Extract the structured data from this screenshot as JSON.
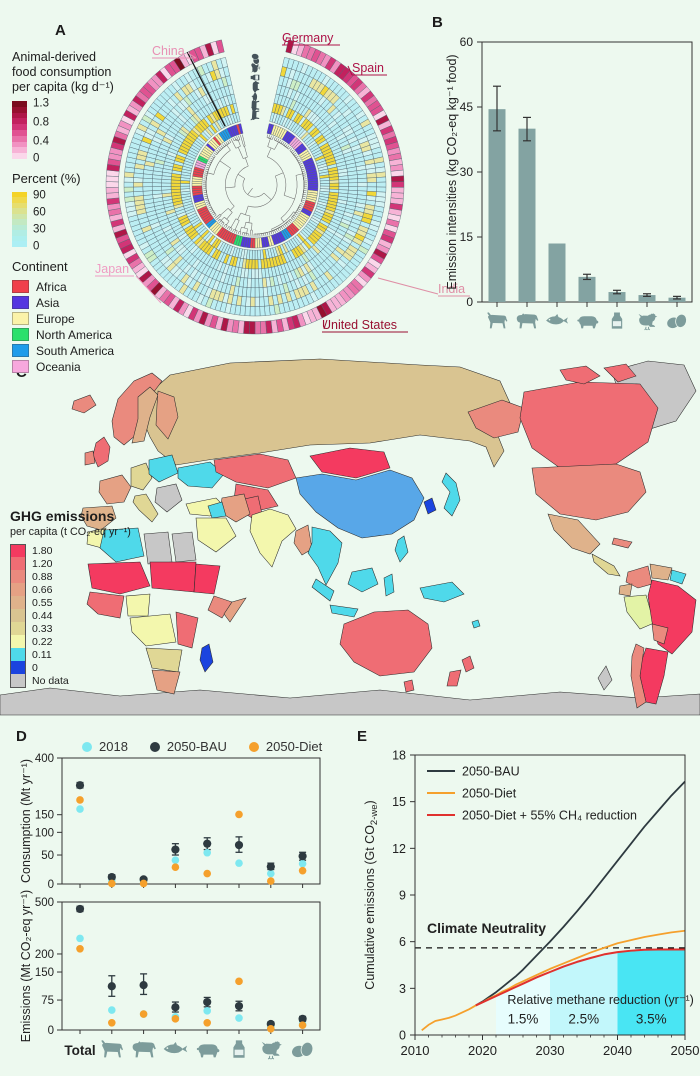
{
  "panels": {
    "a": "A",
    "b": "B",
    "c": "C",
    "d": "D",
    "e": "E"
  },
  "colors": {
    "background": "#edf9ef",
    "text": "#2b2b2b",
    "axis": "#333333",
    "series_2018": "#7ee8f0",
    "series_bau": "#2e3a40",
    "series_diet": "#f5a02c",
    "series_diet_ch4": "#e0312e"
  },
  "chart_data": [
    {
      "id": "A",
      "type": "circular-heatmap",
      "consumption_legend": {
        "title_lines": [
          "Animal-derived",
          "food consumption",
          "per capita (kg d⁻¹)"
        ],
        "tick_labels": [
          "1.3",
          "0.8",
          "0.4",
          "0"
        ],
        "colors": [
          "#7a0c1e",
          "#96102f",
          "#ae1647",
          "#c2215e",
          "#d23577",
          "#e05291",
          "#e972a9",
          "#f192c2",
          "#f7b3d6",
          "#fbd7ea"
        ]
      },
      "percent_legend": {
        "title": "Percent (%)",
        "tick_labels": [
          "90",
          "60",
          "30",
          "0"
        ],
        "colors": [
          "#f4d327",
          "#efd94c",
          "#e6de6e",
          "#dbe28f",
          "#cfe6aa",
          "#c3e9c2",
          "#b9ebd5",
          "#b1ede4",
          "#adefee",
          "#aceff4"
        ]
      },
      "continent_legend": {
        "title": "Continent",
        "items": [
          {
            "label": "Africa",
            "color": "#f0404b"
          },
          {
            "label": "Asia",
            "color": "#5436e0"
          },
          {
            "label": "Europe",
            "color": "#fbf3a9"
          },
          {
            "label": "North America",
            "color": "#2ce06c"
          },
          {
            "label": "South America",
            "color": "#1f9cea"
          },
          {
            "label": "Oceania",
            "color": "#f7a8dd"
          }
        ]
      },
      "country_labels": [
        {
          "name": "China",
          "color": "#e890b4"
        },
        {
          "name": "Germany",
          "color": "#ad1247"
        },
        {
          "name": "Spain",
          "color": "#ad1247"
        },
        {
          "name": "India",
          "color": "#df8fa6"
        },
        {
          "name": "United States",
          "color": "#991031"
        },
        {
          "name": "Japan",
          "color": "#ef9cc3"
        }
      ],
      "ring_foods_inner_to_outer": [
        "goat",
        "cattle",
        "fish",
        "pig",
        "milk",
        "chicken",
        "eggs"
      ],
      "palette": {
        "cell_cyan": "#bceef3",
        "cell_cyan_light": "#d2f3f3",
        "cell_yellow": "#f1d83a",
        "cell_pale_yellow": "#e9e6a2",
        "cell_pale_green": "#cdeec6"
      },
      "n_countries": 150
    },
    {
      "id": "B",
      "type": "bar",
      "ylabel": "Emission intensities (kg CO₂-eq kg⁻¹ food)",
      "yticks": [
        0,
        15,
        30,
        45,
        60
      ],
      "ylim": [
        0,
        60
      ],
      "bar_color": "#83a3a2",
      "icon_color": "#7d9c9b",
      "categories": [
        "goat",
        "cattle",
        "fish",
        "pig",
        "milk",
        "chicken",
        "eggs"
      ],
      "values": [
        44.5,
        40,
        13.5,
        5.8,
        2.3,
        1.6,
        1.0
      ],
      "err_low": [
        39.5,
        37.2,
        null,
        5.2,
        1.9,
        1.3,
        0.7
      ],
      "err_high": [
        49.8,
        42.6,
        null,
        6.4,
        2.7,
        1.9,
        1.3
      ]
    },
    {
      "id": "C",
      "type": "choropleth-map",
      "legend": {
        "title": "GHG emissions",
        "subtitle": "per capita (t CO₂-eq yr⁻¹)",
        "bins": [
          {
            "label": "1.80",
            "color": "#f43a60"
          },
          {
            "label": "1.20",
            "color": "#ef6d74"
          },
          {
            "label": "0.88",
            "color": "#ea8a7e"
          },
          {
            "label": "0.66",
            "color": "#e5a184"
          },
          {
            "label": "0.55",
            "color": "#dfb28b"
          },
          {
            "label": "0.44",
            "color": "#d9c491"
          },
          {
            "label": "0.33",
            "color": "#e0d795"
          },
          {
            "label": "0.22",
            "color": "#f3f7ad"
          },
          {
            "label": "0.11",
            "color": "#4fd9ea"
          },
          {
            "label": "0",
            "color": "#1b44df"
          },
          {
            "label": "No data",
            "color": "#c7c7c7"
          }
        ]
      },
      "regions": {
        "russia": "#d9c491",
        "norway": "#ea8a7e",
        "sweden": "#dfb28b",
        "finland": "#e5a184",
        "iceland": "#ea8a7e",
        "greenland": "#c7c7c7",
        "uk": "#ef6d74",
        "ireland": "#ea8a7e",
        "france": "#e5a184",
        "iberia": "#dfb28b",
        "germany": "#e0d795",
        "poland": "#4fd9ea",
        "ukraine": "#4fd9ea",
        "balkans": "#c7c7c7",
        "italy": "#e0d795",
        "turkey": "#f3f7ad",
        "kazakhstan": "#ef6d74",
        "centralasia": "#ef6d74",
        "mongolia": "#f43a60",
        "china": "#58a7e8",
        "korea": "#1b44df",
        "japan": "#4fd9ea",
        "pakistan": "#ef6d74",
        "india": "#f3f7ad",
        "iran": "#e5a184",
        "iraq": "#4fd9ea",
        "saudi": "#f3f7ad",
        "myanmar": "#e5a184",
        "seasia": "#4fd9ea",
        "philippines": "#4fd9ea",
        "borneo": "#4fd9ea",
        "sumatra": "#4fd9ea",
        "java": "#4fd9ea",
        "sulawesi": "#4fd9ea",
        "newguinea": "#4fd9ea",
        "morocco": "#f3f7ad",
        "algeria": "#4fd9ea",
        "libya": "#c7c7c7",
        "egypt": "#c7c7c7",
        "mali": "#f43a60",
        "chad": "#f43a60",
        "sudan": "#f43a60",
        "westafrica": "#ef6d74",
        "nigeria": "#f3f7ad",
        "ethiopia": "#ea8a7e",
        "somalia": "#e5a184",
        "centralafrica": "#f3f7ad",
        "eastafrica": "#ef6d74",
        "angola": "#e0d795",
        "southafrica": "#e5a184",
        "madagascar": "#1b44df",
        "australia": "#ef6d74",
        "tasmania": "#ef6d74",
        "nz1": "#ef6d74",
        "nz2": "#ef6d74",
        "fiji": "#4fd9ea",
        "alaska": "#ea8a7e",
        "canada": "#ef6d74",
        "arctic1": "#ef6d74",
        "arctic2": "#ef6d74",
        "usa": "#ea8a7e",
        "mexico": "#dfb28b",
        "centralamerica": "#e0d795",
        "cuba": "#ea8a7e",
        "colombia": "#ea8a7e",
        "venezuela": "#dfb28b",
        "guyanas": "#4fd9ea",
        "ecuador": "#dfb28b",
        "peru": "#e3f3a6",
        "brazil": "#f43a60",
        "bolivia": "#ea8a7e",
        "argentina": "#f43a60",
        "chile": "#ea8a7e",
        "antarctica": "#c7c7c7",
        "antarctic_peninsula": "#c7c7c7"
      }
    },
    {
      "id": "D",
      "type": "scatter",
      "legend": [
        {
          "label": "2018",
          "color": "#7ee8f0"
        },
        {
          "label": "2050-BAU",
          "color": "#2e3a40"
        },
        {
          "label": "2050-Diet",
          "color": "#f5a02c"
        }
      ],
      "categories": [
        "Total",
        "goat",
        "cattle",
        "fish",
        "pig",
        "milk",
        "chicken",
        "eggs"
      ],
      "total_label": "Total",
      "icon_color": "#7d9c9b",
      "subplots": [
        {
          "ylabel": "Consumption (Mt yr⁻¹)",
          "yticks": [
            0,
            50,
            100,
            150,
            400
          ],
          "series_2018": [
            175,
            5,
            5,
            41,
            55,
            36,
            18,
            35
          ],
          "series_bau": [
            280,
            12,
            8,
            62,
            75,
            72,
            30,
            48
          ],
          "bau_err_low": [
            268,
            8,
            5,
            50,
            62,
            56,
            25,
            41
          ],
          "bau_err_high": [
            292,
            16,
            11,
            75,
            88,
            90,
            36,
            56
          ],
          "series_diet": [
            215,
            1,
            1,
            29,
            18,
            151,
            5,
            23
          ]
        },
        {
          "ylabel": "Emissions (Mt CO₂-eq yr⁻¹)",
          "yticks": [
            0,
            75,
            150,
            200,
            500
          ],
          "series_2018": [
            290,
            50,
            40,
            33,
            48,
            30,
            8,
            15
          ],
          "series_bau": [
            460,
            112,
            115,
            57,
            70,
            60,
            15,
            28
          ],
          "bau_err_low": [
            445,
            85,
            90,
            45,
            58,
            48,
            10,
            22
          ],
          "bau_err_high": [
            475,
            140,
            145,
            70,
            82,
            72,
            20,
            34
          ],
          "series_diet": [
            230,
            18,
            40,
            28,
            18,
            125,
            3,
            12
          ]
        }
      ]
    },
    {
      "id": "E",
      "type": "line",
      "ylabel_parts": {
        "pre": "Cumulative  emissions (Gt CO",
        "sub": "2-we",
        "post": ")"
      },
      "yticks": [
        0,
        3,
        6,
        9,
        12,
        15,
        18
      ],
      "xticks": [
        2010,
        2020,
        2030,
        2040,
        2050
      ],
      "xlim": [
        2010,
        2050
      ],
      "ylim": [
        0,
        18
      ],
      "legend": [
        {
          "label": "2050-BAU",
          "color": "#2e3a40"
        },
        {
          "label": "2050-Diet",
          "color": "#f5a02c"
        },
        {
          "label": "2050-Diet + 55% CH₄ reduction",
          "color": "#e0312e"
        }
      ],
      "climate_neutrality": {
        "label": "Climate Neutrality",
        "value": 5.6
      },
      "methane_title": "Relative methane reduction (yr⁻¹)",
      "bands": [
        {
          "label": "1.5%",
          "x0": 2022,
          "x1": 2030,
          "color": "#e7fdfd"
        },
        {
          "label": "2.5%",
          "x0": 2030,
          "x1": 2040,
          "color": "#c2f7fb"
        },
        {
          "label": "3.5%",
          "x0": 2040,
          "x1": 2050,
          "color": "#49e5f3"
        }
      ],
      "series": [
        {
          "name": "2050-BAU",
          "color": "#2e3a40",
          "width": 1.8,
          "points": [
            [
              2019,
              1.9
            ],
            [
              2020,
              2.15
            ],
            [
              2021,
              2.45
            ],
            [
              2022,
              2.75
            ],
            [
              2023,
              3.1
            ],
            [
              2024,
              3.45
            ],
            [
              2025,
              3.8
            ],
            [
              2026,
              4.2
            ],
            [
              2027,
              4.65
            ],
            [
              2028,
              5.1
            ],
            [
              2029,
              5.55
            ],
            [
              2030,
              6.0
            ],
            [
              2032,
              6.95
            ],
            [
              2034,
              7.95
            ],
            [
              2036,
              9.0
            ],
            [
              2038,
              10.1
            ],
            [
              2040,
              11.2
            ],
            [
              2042,
              12.3
            ],
            [
              2044,
              13.4
            ],
            [
              2046,
              14.4
            ],
            [
              2048,
              15.4
            ],
            [
              2050,
              16.3
            ]
          ]
        },
        {
          "name": "2050-Diet",
          "color": "#f5a02c",
          "width": 1.8,
          "points": [
            [
              2011,
              0.3
            ],
            [
              2012,
              0.65
            ],
            [
              2013,
              0.9
            ],
            [
              2014,
              1.0
            ],
            [
              2015,
              1.1
            ],
            [
              2016,
              1.25
            ],
            [
              2017,
              1.45
            ],
            [
              2018,
              1.65
            ],
            [
              2019,
              1.9
            ],
            [
              2020,
              2.1
            ],
            [
              2021,
              2.35
            ],
            [
              2022,
              2.55
            ],
            [
              2023,
              2.8
            ],
            [
              2024,
              3.0
            ],
            [
              2025,
              3.25
            ],
            [
              2026,
              3.45
            ],
            [
              2027,
              3.65
            ],
            [
              2028,
              3.85
            ],
            [
              2029,
              4.05
            ],
            [
              2030,
              4.25
            ],
            [
              2032,
              4.6
            ],
            [
              2034,
              4.95
            ],
            [
              2036,
              5.3
            ],
            [
              2038,
              5.6
            ],
            [
              2040,
              5.9
            ],
            [
              2042,
              6.1
            ],
            [
              2044,
              6.3
            ],
            [
              2046,
              6.45
            ],
            [
              2048,
              6.6
            ],
            [
              2050,
              6.7
            ]
          ]
        },
        {
          "name": "2050-Diet + 55% CH4 reduction",
          "color": "#e0312e",
          "width": 2,
          "points": [
            [
              2019,
              1.9
            ],
            [
              2020,
              2.1
            ],
            [
              2021,
              2.3
            ],
            [
              2022,
              2.5
            ],
            [
              2023,
              2.7
            ],
            [
              2024,
              2.9
            ],
            [
              2025,
              3.1
            ],
            [
              2026,
              3.3
            ],
            [
              2027,
              3.5
            ],
            [
              2028,
              3.7
            ],
            [
              2029,
              3.88
            ],
            [
              2030,
              4.05
            ],
            [
              2032,
              4.4
            ],
            [
              2034,
              4.7
            ],
            [
              2036,
              4.95
            ],
            [
              2038,
              5.18
            ],
            [
              2040,
              5.33
            ],
            [
              2042,
              5.42
            ],
            [
              2044,
              5.48
            ],
            [
              2046,
              5.5
            ],
            [
              2048,
              5.5
            ],
            [
              2050,
              5.5
            ]
          ]
        }
      ]
    }
  ]
}
